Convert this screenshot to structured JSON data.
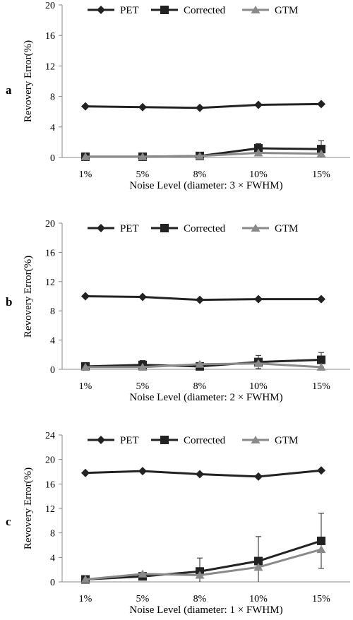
{
  "chart_data": [
    {
      "type": "line",
      "panel_label": "a",
      "categories": [
        "1%",
        "5%",
        "8%",
        "10%",
        "15%"
      ],
      "xlabel": "Noise Level (diameter: 3 × FWHM)",
      "ylabel": "Revovery Error(%)",
      "ylim": [
        0,
        20
      ],
      "yticks": [
        "0",
        "4",
        "8",
        "12",
        "16",
        "20"
      ],
      "grid": false,
      "legend": "top",
      "series": [
        {
          "name": "PET",
          "marker": "diamond",
          "color": "#222222",
          "values": [
            6.7,
            6.6,
            6.5,
            6.9,
            7.0
          ],
          "errors": [
            0,
            0,
            0,
            0,
            0
          ]
        },
        {
          "name": "Corrected",
          "marker": "square",
          "color": "#222222",
          "values": [
            0.1,
            0.1,
            0.2,
            1.2,
            1.1
          ],
          "errors": [
            0,
            0,
            0,
            0.6,
            1.1
          ]
        },
        {
          "name": "GTM",
          "marker": "triangle",
          "color": "#8a8a8a",
          "values": [
            0.1,
            0.1,
            0.2,
            0.6,
            0.5
          ],
          "errors": [
            0,
            0,
            0,
            0,
            0
          ]
        }
      ]
    },
    {
      "type": "line",
      "panel_label": "b",
      "categories": [
        "1%",
        "5%",
        "8%",
        "10%",
        "15%"
      ],
      "xlabel": "Noise Level (diameter: 2 × FWHM)",
      "ylabel": "Revovery Error(%)",
      "ylim": [
        0,
        20
      ],
      "yticks": [
        "0",
        "4",
        "8",
        "12",
        "16",
        "20"
      ],
      "grid": false,
      "legend": "top",
      "series": [
        {
          "name": "PET",
          "marker": "diamond",
          "color": "#222222",
          "values": [
            10.0,
            9.9,
            9.5,
            9.6,
            9.6
          ],
          "errors": [
            0,
            0,
            0,
            0,
            0
          ]
        },
        {
          "name": "Corrected",
          "marker": "square",
          "color": "#222222",
          "values": [
            0.4,
            0.6,
            0.4,
            1.0,
            1.3
          ],
          "errors": [
            0,
            0.6,
            0,
            0.9,
            1.0
          ]
        },
        {
          "name": "GTM",
          "marker": "triangle",
          "color": "#8a8a8a",
          "values": [
            0.3,
            0.3,
            0.7,
            0.8,
            0.3
          ],
          "errors": [
            0,
            0,
            0,
            0,
            0
          ]
        }
      ]
    },
    {
      "type": "line",
      "panel_label": "c",
      "categories": [
        "1%",
        "5%",
        "8%",
        "10%",
        "15%"
      ],
      "xlabel": "Noise Level (diameter: 1 × FWHM)",
      "ylabel": "Revovery Error(%)",
      "ylim": [
        0,
        24
      ],
      "yticks": [
        "0",
        "4",
        "8",
        "12",
        "16",
        "20",
        "24"
      ],
      "grid": false,
      "legend": "top",
      "series": [
        {
          "name": "PET",
          "marker": "diamond",
          "color": "#222222",
          "values": [
            17.8,
            18.1,
            17.6,
            17.2,
            18.2
          ],
          "errors": [
            0,
            0,
            0,
            0,
            0
          ]
        },
        {
          "name": "Corrected",
          "marker": "square",
          "color": "#222222",
          "values": [
            0.4,
            0.9,
            1.7,
            3.4,
            6.7
          ],
          "errors": [
            0,
            0.6,
            2.2,
            4.0,
            4.5
          ]
        },
        {
          "name": "GTM",
          "marker": "triangle",
          "color": "#8a8a8a",
          "values": [
            0.4,
            1.3,
            1.1,
            2.4,
            5.3
          ],
          "errors": [
            0,
            0,
            0,
            0,
            0
          ]
        }
      ]
    }
  ]
}
